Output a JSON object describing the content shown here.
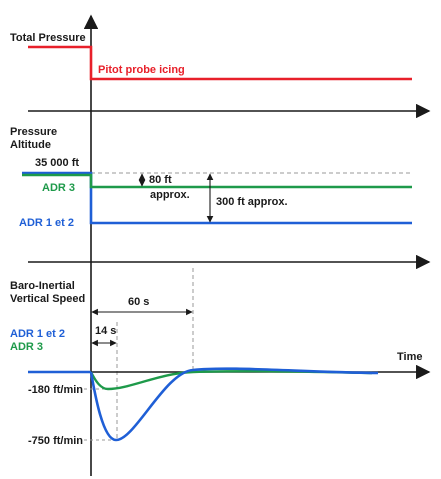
{
  "panels": {
    "total_pressure": {
      "title": "Total Pressure",
      "event_label": "Pitot probe icing"
    },
    "pressure_altitude": {
      "title_line1": "Pressure",
      "title_line2": "Altitude",
      "reference_value": "35 000 ft",
      "adr3_label": "ADR 3",
      "adr12_label": "ADR 1 et 2",
      "adr3_offset": "80 ft",
      "adr3_offset_note": "approx.",
      "adr12_offset": "300 ft approx."
    },
    "vertical_speed": {
      "title_line1": "Baro-Inertial",
      "title_line2": "Vertical Speed",
      "legend_adr12": "ADR 1 et 2",
      "legend_adr3": "ADR 3",
      "duration_60": "60 s",
      "duration_14": "14 s",
      "adr3_min": "-180 ft/min",
      "adr12_min": "-750 ft/min",
      "time_axis": "Time"
    }
  },
  "colors": {
    "red": "#e8202a",
    "green": "#1e9a4a",
    "blue": "#1f5fd6",
    "axis": "#1a1a1a",
    "dashed": "#999999"
  }
}
